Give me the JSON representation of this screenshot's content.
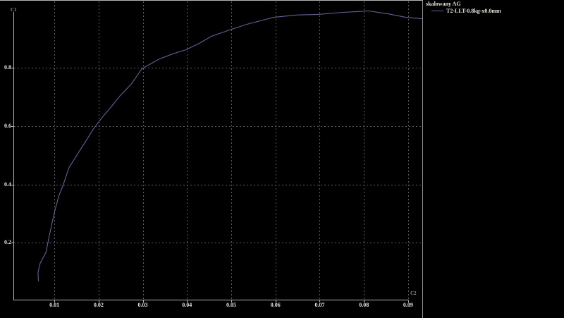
{
  "window": {
    "background": "#000000"
  },
  "legend": {
    "title": "skalowany AG",
    "series_label": "T2-LLT-0.8kg-x0.0mm"
  },
  "axes": {
    "y_unit_label": "C1",
    "x_unit_label": "C2",
    "x_ticks": [
      "0.01",
      "0.02",
      "0.03",
      "0.04",
      "0.05",
      "0.06",
      "0.07",
      "0.08",
      "0.09"
    ],
    "y_ticks": [
      "0.2",
      "0.4",
      "0.6",
      "0.8"
    ]
  },
  "colors": {
    "background": "#000000",
    "curve": "#6b5d94",
    "grid": "#5f5f5f",
    "axis_line": "#b5b5b5",
    "border_line": "#9a9a9a",
    "tick_text": "#e6e2da",
    "unit_text": "#8f8f8f",
    "legend_text": "#e6e2da"
  },
  "chart_data": {
    "type": "line",
    "title": "skalowany AG",
    "xlabel": "C2",
    "ylabel": "C1",
    "xlim": [
      0.0009,
      0.0932
    ],
    "ylim": [
      0,
      1.03
    ],
    "x_tick_values": [
      0.01,
      0.02,
      0.03,
      0.04,
      0.05,
      0.06,
      0.07,
      0.08,
      0.09
    ],
    "y_tick_values": [
      0.2,
      0.4,
      0.6,
      0.8
    ],
    "grid": "dotted gray gridlines at every x tick (0.01-0.09) and y tick (0.2-0.8)",
    "legend_position": "top-right, outside plot area",
    "series": [
      {
        "name": "T2-LLT-0.8kg-x0.0mm",
        "color": "#6b5d94",
        "points": [
          [
            0.0064,
            0.068
          ],
          [
            0.0063,
            0.099
          ],
          [
            0.0068,
            0.13
          ],
          [
            0.0081,
            0.167
          ],
          [
            0.0089,
            0.227
          ],
          [
            0.01,
            0.304
          ],
          [
            0.011,
            0.36
          ],
          [
            0.0119,
            0.394
          ],
          [
            0.0133,
            0.457
          ],
          [
            0.0153,
            0.505
          ],
          [
            0.0173,
            0.553
          ],
          [
            0.0189,
            0.592
          ],
          [
            0.021,
            0.633
          ],
          [
            0.0229,
            0.667
          ],
          [
            0.0248,
            0.703
          ],
          [
            0.0274,
            0.744
          ],
          [
            0.0298,
            0.797
          ],
          [
            0.0336,
            0.829
          ],
          [
            0.0368,
            0.848
          ],
          [
            0.0398,
            0.862
          ],
          [
            0.0428,
            0.884
          ],
          [
            0.0455,
            0.908
          ],
          [
            0.0497,
            0.93
          ],
          [
            0.0535,
            0.949
          ],
          [
            0.0596,
            0.973
          ],
          [
            0.0647,
            0.981
          ],
          [
            0.0696,
            0.983
          ],
          [
            0.0753,
            0.99
          ],
          [
            0.0811,
            0.995
          ],
          [
            0.0854,
            0.985
          ],
          [
            0.0895,
            0.973
          ],
          [
            0.0932,
            0.968
          ]
        ]
      }
    ]
  }
}
